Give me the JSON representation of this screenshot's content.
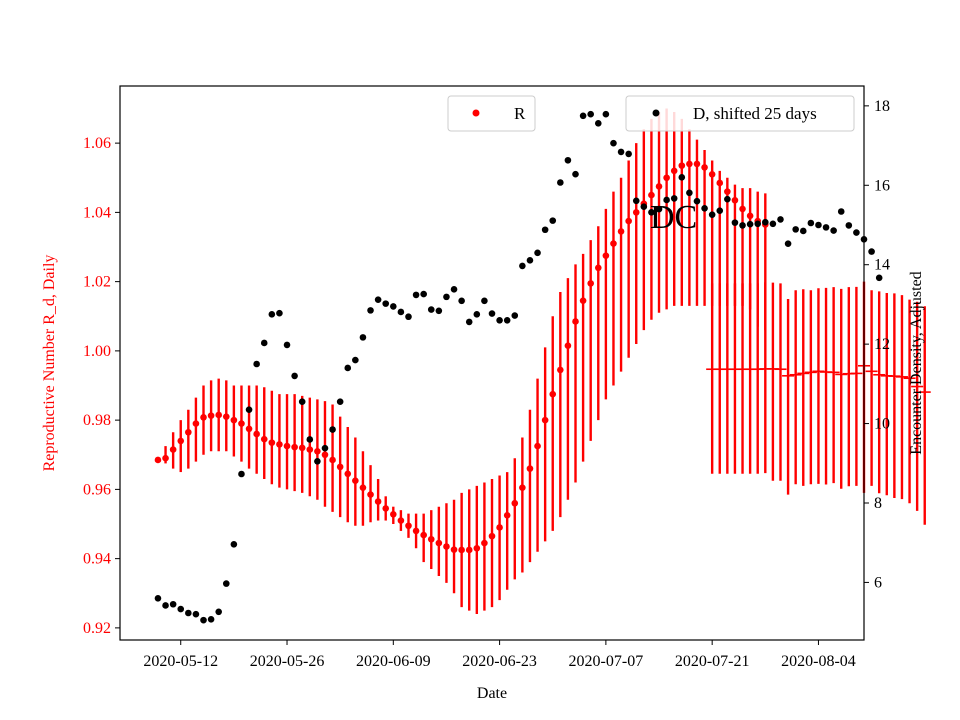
{
  "chart_data": {
    "type": "scatter",
    "title": "",
    "annotation": "DC",
    "xlabel": "Date",
    "ylabel_left": "Reproductive Number R_d, Daily",
    "ylabel_right": "Encounter Density, Adjusted",
    "xlim": [
      "2020-05-04",
      "2020-08-10"
    ],
    "ylim_left": [
      0.9165,
      1.0765
    ],
    "ylim_right": [
      4.55,
      18.5
    ],
    "x_ticks": [
      "2020-05-12",
      "2020-05-26",
      "2020-06-09",
      "2020-06-23",
      "2020-07-07",
      "2020-07-21",
      "2020-08-04"
    ],
    "y_ticks_left": [
      0.92,
      0.94,
      0.96,
      0.98,
      1.0,
      1.02,
      1.04,
      1.06
    ],
    "y_ticks_left_labels": [
      "0.92",
      "0.94",
      "0.96",
      "0.98",
      "1.00",
      "1.02",
      "1.04",
      "1.06"
    ],
    "y_ticks_right": [
      6,
      8,
      10,
      12,
      14,
      16,
      18
    ],
    "grid": false,
    "colors": {
      "R": "#ff0000",
      "D": "#000000",
      "left_axis_text": "#ff0000"
    },
    "legends": [
      {
        "label": "R",
        "color": "#ff0000",
        "placement": "upper-center"
      },
      {
        "label": "D, shifted 25 days",
        "color": "#000000",
        "placement": "upper-right"
      }
    ],
    "series": [
      {
        "name": "R",
        "axis": "left",
        "marker": "dot",
        "start": "2020-05-09",
        "step_days": 1,
        "values": [
          0.9685,
          0.969,
          0.9715,
          0.974,
          0.9765,
          0.979,
          0.9808,
          0.9813,
          0.9815,
          0.981,
          0.98,
          0.979,
          0.9775,
          0.976,
          0.9745,
          0.9735,
          0.973,
          0.9725,
          0.9722,
          0.972,
          0.9715,
          0.971,
          0.97,
          0.9685,
          0.9665,
          0.9645,
          0.9625,
          0.9605,
          0.9585,
          0.9565,
          0.9545,
          0.9528,
          0.951,
          0.9495,
          0.948,
          0.9468,
          0.9456,
          0.9445,
          0.9435,
          0.9426,
          0.9425,
          0.9425,
          0.943,
          0.9445,
          0.9465,
          0.949,
          0.9525,
          0.956,
          0.9605,
          0.966,
          0.9725,
          0.98,
          0.9875,
          0.9945,
          1.0015,
          1.0085,
          1.0145,
          1.0195,
          1.024,
          1.0275,
          1.031,
          1.0345,
          1.0375,
          1.04,
          1.0425,
          1.045,
          1.0475,
          1.05,
          1.052,
          1.0535,
          1.054,
          1.054,
          1.053,
          1.051,
          1.0485,
          1.046,
          1.0435,
          1.041,
          1.039,
          1.0375,
          1.0365
        ],
        "err_lower": [
          0.968,
          0.9675,
          0.966,
          0.965,
          0.966,
          0.968,
          0.97,
          0.971,
          0.971,
          0.971,
          0.9695,
          0.968,
          0.966,
          0.9645,
          0.963,
          0.9615,
          0.9605,
          0.96,
          0.9595,
          0.959,
          0.958,
          0.957,
          0.955,
          0.9535,
          0.952,
          0.9505,
          0.9495,
          0.9495,
          0.9505,
          0.951,
          0.951,
          0.95,
          0.948,
          0.946,
          0.943,
          0.939,
          0.937,
          0.935,
          0.933,
          0.93,
          0.926,
          0.925,
          0.924,
          0.925,
          0.926,
          0.928,
          0.931,
          0.934,
          0.936,
          0.939,
          0.942,
          0.945,
          0.948,
          0.952,
          0.957,
          0.962,
          0.968,
          0.974,
          0.98,
          0.986,
          0.99,
          0.994,
          0.998,
          1.002,
          1.006,
          1.009,
          1.011,
          1.012,
          1.013,
          1.013,
          1.013,
          1.013,
          1.013,
          1.013,
          1.013,
          1.013,
          1.013,
          1.013,
          1.012,
          1.007,
          1.006
        ],
        "err_upper": [
          0.969,
          0.9725,
          0.9765,
          0.98,
          0.983,
          0.9865,
          0.99,
          0.9915,
          0.992,
          0.9915,
          0.99,
          0.99,
          0.99,
          0.99,
          0.9895,
          0.9885,
          0.9875,
          0.9875,
          0.9875,
          0.987,
          0.9865,
          0.986,
          0.9855,
          0.9845,
          0.981,
          0.978,
          0.975,
          0.971,
          0.967,
          0.963,
          0.958,
          0.955,
          0.954,
          0.953,
          0.953,
          0.953,
          0.954,
          0.955,
          0.956,
          0.957,
          0.959,
          0.96,
          0.961,
          0.962,
          0.963,
          0.964,
          0.965,
          0.969,
          0.975,
          0.983,
          0.992,
          1.001,
          1.01,
          1.017,
          1.021,
          1.025,
          1.028,
          1.032,
          1.036,
          1.041,
          1.046,
          1.05,
          1.055,
          1.06,
          1.064,
          1.067,
          1.069,
          1.07,
          1.069,
          1.067,
          1.064,
          1.061,
          1.058,
          1.055,
          1.052,
          1.05,
          1.048,
          1.047,
          1.047,
          1.046,
          1.0455
        ]
      },
      {
        "name": "",
        "axis": "left",
        "marker": "hline",
        "start": "2020-07-21",
        "step_days": 1,
        "values": [
          0.9947,
          0.9947,
          0.9947,
          0.9947,
          0.9947,
          0.9947,
          0.9947,
          0.9948,
          0.9948,
          0.9947,
          0.9928,
          0.9931,
          0.9935,
          0.9938,
          0.9941,
          0.9939,
          0.9938,
          0.9932,
          0.9934,
          0.9935,
          0.9957,
          0.9941,
          0.9931,
          0.9928,
          0.9927,
          0.9925,
          0.9921,
          0.9897,
          0.9881
        ],
        "err_lower": [
          0.9645,
          0.9645,
          0.9645,
          0.9645,
          0.9645,
          0.9645,
          0.9645,
          0.9647,
          0.9625,
          0.9625,
          0.9585,
          0.9615,
          0.961,
          0.9615,
          0.9616,
          0.9614,
          0.9618,
          0.9602,
          0.9609,
          0.961,
          0.959,
          0.961,
          0.9589,
          0.9583,
          0.9575,
          0.9572,
          0.956,
          0.9538,
          0.9498
        ],
        "err_upper": [
          1.0195,
          1.0195,
          1.0195,
          1.0195,
          1.0195,
          1.0195,
          1.0195,
          1.0198,
          1.0197,
          1.0195,
          1.015,
          1.0175,
          1.0178,
          1.0175,
          1.0181,
          1.0182,
          1.0184,
          1.0179,
          1.0184,
          1.0185,
          1.02,
          1.0175,
          1.0172,
          1.0167,
          1.0166,
          1.0161,
          1.0148,
          1.0142,
          1.0129
        ]
      },
      {
        "name": "D, shifted 25 days",
        "axis": "right",
        "marker": "dot",
        "start": "2020-05-09",
        "step_days": 1,
        "values": [
          5.6,
          5.42,
          5.45,
          5.33,
          5.23,
          5.2,
          5.05,
          5.07,
          5.26,
          5.97,
          6.96,
          8.73,
          10.35,
          11.5,
          12.03,
          12.75,
          12.78,
          11.98,
          11.2,
          10.55,
          9.6,
          9.05,
          9.38,
          9.85,
          10.55,
          11.4,
          11.6,
          12.17,
          12.85,
          13.12,
          13.02,
          12.95,
          12.81,
          12.69,
          13.24,
          13.26,
          12.87,
          12.84,
          13.19,
          13.38,
          13.09,
          12.56,
          12.75,
          13.09,
          12.77,
          12.6,
          12.6,
          12.72,
          13.97,
          14.11,
          14.3,
          14.88,
          15.11,
          16.07,
          16.63,
          16.28,
          17.75,
          17.79,
          17.56,
          17.79,
          17.06,
          16.84,
          16.79,
          15.61,
          15.46,
          15.32,
          15.4,
          15.63,
          15.67,
          16.2,
          15.81,
          15.6,
          15.42,
          15.26,
          15.36,
          15.65,
          15.06,
          14.99,
          15.02,
          15.03,
          15.07,
          15.03,
          15.14,
          14.53,
          14.89,
          14.85,
          15.05,
          15.0,
          14.94,
          14.86,
          15.34,
          14.99,
          14.81,
          14.64,
          14.33,
          13.67
        ]
      }
    ]
  }
}
